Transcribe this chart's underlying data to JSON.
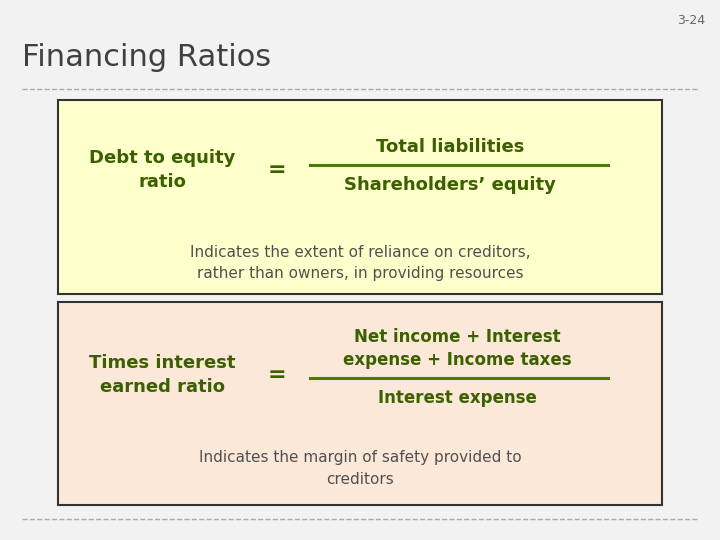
{
  "slide_number": "3-24",
  "title": "Financing Ratios",
  "bg_color": "#f2f2f2",
  "title_color": "#404040",
  "title_fontsize": 22,
  "box1": {
    "bg_color": "#ffffcc",
    "border_color": "#333333",
    "label": "Debt to equity\nratio",
    "eq_sign": "=",
    "numerator": "Total liabilities",
    "denominator": "Shareholders’ equity",
    "fraction_line_color": "#4a7a00",
    "text_color": "#3a6000",
    "indicator_text": "Indicates the extent of reliance on creditors,\nrather than owners, in providing resources",
    "indicator_color": "#505050"
  },
  "box2": {
    "bg_color": "#fce8d8",
    "border_color": "#333333",
    "label": "Times interest\nearned ratio",
    "eq_sign": "=",
    "numerator": "Net income + Interest\nexpense + Income taxes",
    "denominator": "Interest expense",
    "fraction_line_color": "#4a7a00",
    "text_color": "#3a6000",
    "indicator_text": "Indicates the margin of safety provided to\ncreditors",
    "indicator_color": "#505050"
  }
}
